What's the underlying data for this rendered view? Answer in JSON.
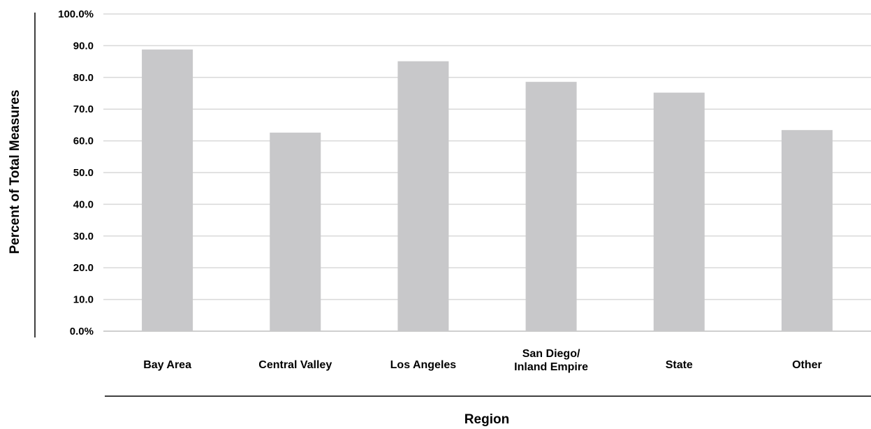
{
  "chart_data": {
    "type": "bar",
    "categories": [
      "Bay Area",
      "Central Valley",
      "Los Angeles",
      "San Diego/\nInland Empire",
      "State",
      "Other"
    ],
    "values": [
      88.8,
      62.6,
      85.1,
      78.6,
      75.2,
      63.4
    ],
    "xlabel": "Region",
    "ylabel": "Percent of Total Measures",
    "ylim": [
      0,
      100
    ],
    "yticks": [
      0,
      10,
      20,
      30,
      40,
      50,
      60,
      70,
      80,
      90,
      100
    ],
    "ytick_labels": [
      "0.0%",
      "10.0",
      "20.0",
      "30.0",
      "40.0",
      "50.0",
      "60.0",
      "70.0",
      "80.0",
      "90.0",
      "100.0%"
    ],
    "grid": true,
    "legend": "none",
    "colors": {
      "bar": "#c8c8ca",
      "grid": "#d9d9d9",
      "text": "#000000"
    }
  }
}
